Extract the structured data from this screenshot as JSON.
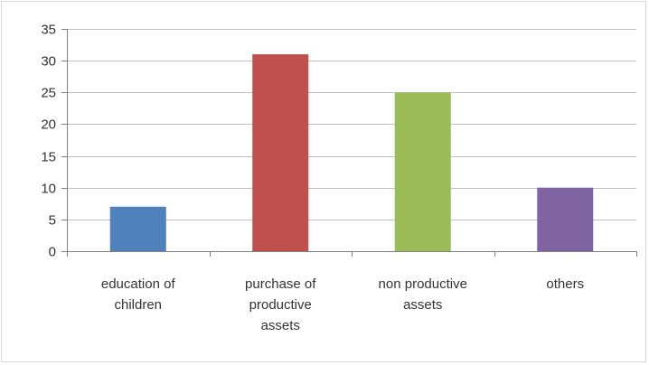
{
  "chart_data": {
    "type": "bar",
    "categories": [
      [
        "education of",
        "children"
      ],
      [
        "purchase of",
        "productive",
        "assets"
      ],
      [
        "non productive",
        "assets"
      ],
      [
        "others"
      ]
    ],
    "values": [
      7,
      31,
      25,
      10
    ],
    "bar_colors": [
      "#4f81bd",
      "#c0504d",
      "#9bbb59",
      "#8064a2"
    ],
    "ylim": [
      0,
      35
    ],
    "yticks": [
      0,
      5,
      10,
      15,
      20,
      25,
      30,
      35
    ],
    "grid": true,
    "legend": "none",
    "title": "",
    "xlabel": "",
    "ylabel": ""
  }
}
